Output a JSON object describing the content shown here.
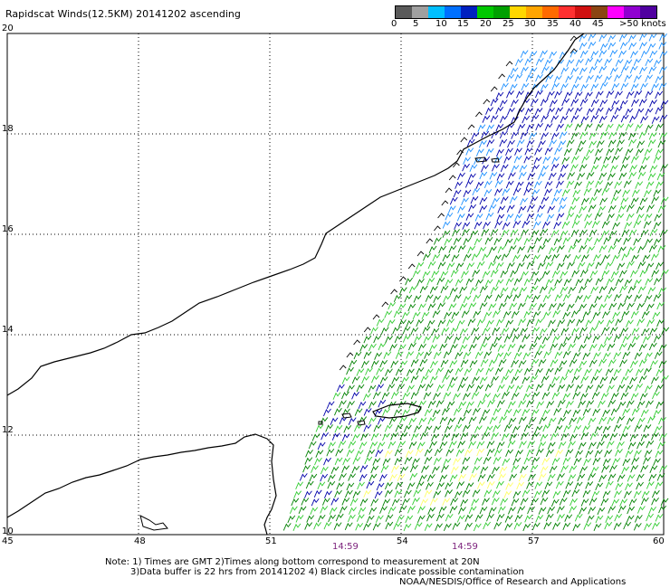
{
  "title": "Rapidscat Winds(12.5KM) 20141202 ascending",
  "colorbar": {
    "colors": [
      "#5a5a5a",
      "#a0a0a0",
      "#00bfff",
      "#0070ff",
      "#0020c0",
      "#00c800",
      "#00a000",
      "#ffd700",
      "#ffa500",
      "#ff6a00",
      "#ff3030",
      "#d01010",
      "#8b4513",
      "#ff00ff",
      "#9000d0",
      "#5000a0"
    ],
    "labels": [
      "0",
      "5",
      "10",
      "15",
      "20",
      "25",
      "30",
      "35",
      "40",
      "45",
      ">50 knots"
    ]
  },
  "axes": {
    "lat_labels": [
      "20",
      "18",
      "16",
      "14",
      "12",
      "10"
    ],
    "lon_labels": [
      "45",
      "48",
      "51",
      "54",
      "57",
      "60"
    ]
  },
  "pass_times": [
    "14:59",
    "14:59"
  ],
  "notes": [
    "Note: 1) Times are GMT 2)Times along bottom correspond to measurement at 20N",
    "3)Data buffer is 22 hrs from 20141202 4) Black circles indicate possible contamination",
    "NOAA/NESDIS/Office of Research and Applications"
  ],
  "colors": {
    "green_dark": "#008000",
    "green_light": "#33cc33",
    "blue_dark": "#0000aa",
    "blue_light": "#1e90ff",
    "yellow": "#ffff66",
    "black": "#000000"
  }
}
